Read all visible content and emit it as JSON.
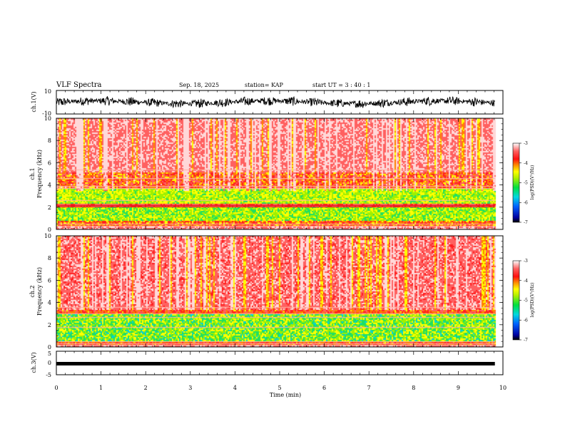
{
  "header": {
    "title": "VLF Spectra",
    "date": "Sep. 18, 2025",
    "station": "station= KAP",
    "start": "start  UT =  3 : 40 : 1"
  },
  "chart_data": {
    "type": "heatmap",
    "x": {
      "label": "Time (min)",
      "range": [
        0,
        10
      ],
      "ticks": [
        "0",
        "1",
        "2",
        "3",
        "4",
        "5",
        "6",
        "7",
        "8",
        "9",
        "10"
      ]
    },
    "ch1_wave": {
      "ylabel": "ch.1(V)",
      "ylim": [
        -10,
        10
      ],
      "tick_labels": [
        "10",
        "-10"
      ],
      "amplitude_typical": 4,
      "data_end_min": 9.82
    },
    "ch1_spectrogram": {
      "ylabel_line1": "ch.1",
      "ylabel_line2": "Frequency (kHz)",
      "ylim": [
        0,
        10
      ],
      "tick_labels": [
        "0",
        "2",
        "4",
        "6",
        "8",
        "10"
      ],
      "data_end_min": 9.82,
      "colorbar": {
        "label": "log(PSD)(V²/Hz)",
        "range": [
          -7,
          -3
        ],
        "tick_labels": [
          "-3",
          "-4",
          "-5",
          "-6",
          "-7"
        ]
      }
    },
    "ch2_spectrogram": {
      "ylabel_line1": "ch.2",
      "ylabel_line2": "Frequency (kHz)",
      "ylim": [
        0,
        10
      ],
      "tick_labels": [
        "0",
        "2",
        "4",
        "6",
        "8",
        "10"
      ],
      "data_end_min": 9.82,
      "colorbar": {
        "label": "log(PSD)(V²/Hz)",
        "range": [
          -7,
          -3
        ],
        "tick_labels": [
          "-3",
          "-4",
          "-5",
          "-6",
          "-7"
        ]
      }
    },
    "ch3_wave": {
      "ylabel": "ch.3(V)",
      "ylim": [
        -5,
        5
      ],
      "tick_labels": [
        "5",
        "0",
        "-5"
      ],
      "level": -0.3,
      "data_end_min": 9.82
    },
    "colors": {
      "colormap": [
        "#0000a0",
        "#0050ff",
        "#00d0e0",
        "#20e060",
        "#a0f000",
        "#ffff00",
        "#ff8000",
        "#ff2020",
        "#ff6060",
        "#ffd8d8"
      ]
    }
  }
}
